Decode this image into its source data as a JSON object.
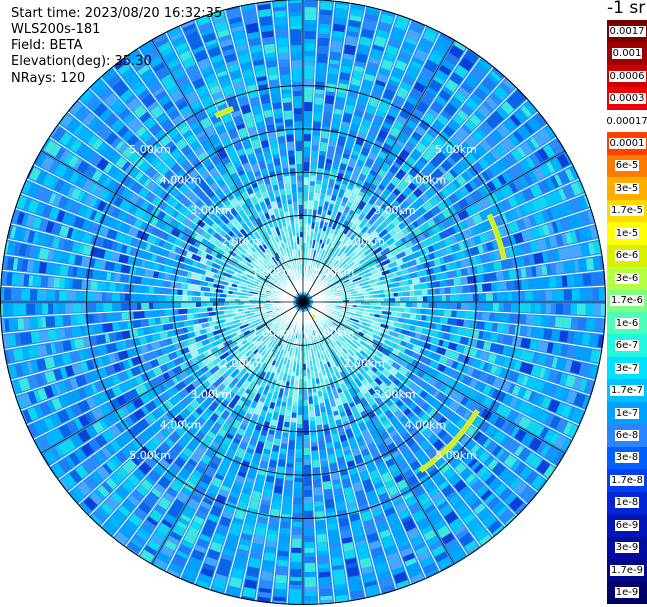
{
  "header": {
    "start_time": "Start time: 2023/08/20 16:32:35",
    "device": "WLS200s-181",
    "field": "Field: BETA",
    "elevation": "Elevation(deg): 35.30",
    "nrays": "NRays: 120"
  },
  "chart_data": {
    "type": "heatmap",
    "projection": "polar-ppi",
    "unit_label": "-1 sr",
    "range_rings_km": [
      1,
      2,
      3,
      4,
      5
    ],
    "ring_labels": [
      "1.00km",
      "2.00km",
      "3.00km",
      "4.00km",
      "5.00km"
    ],
    "max_range_km": 7.0,
    "nrays": 120,
    "colorbar": {
      "levels": [
        "0.0017",
        "0.001",
        "0.0006",
        "0.0003",
        "0.00017",
        "0.0001",
        "6e-5",
        "3e-5",
        "1.7e-5",
        "1e-5",
        "6e-6",
        "3e-6",
        "1.7e-6",
        "1e-6",
        "6e-7",
        "3e-7",
        "1.7e-7",
        "1e-7",
        "6e-8",
        "3e-8",
        "1.7e-8",
        "1e-8",
        "6e-9",
        "3e-9",
        "1.7e-9",
        "1e-9"
      ],
      "colors": [
        "#780000",
        "#a00000",
        "#cc0000",
        "#f00000",
        "#ffffff",
        "#ff4000",
        "#ff7a00",
        "#ffae00",
        "#ffd800",
        "#ffff00",
        "#d8f000",
        "#b4ff40",
        "#80ff80",
        "#4cffb8",
        "#20f8e0",
        "#00e0ff",
        "#00c0ff",
        "#00a0ff",
        "#2a86ff",
        "#0060ff",
        "#0040f0",
        "#0026d8",
        "#0016b8",
        "#000ca0",
        "#000688",
        "#000068"
      ]
    },
    "features": [
      {
        "type": "high-backscatter-arc",
        "az_deg": [
          335,
          340
        ],
        "range_km": [
          4.7,
          4.8
        ],
        "level": "1e-5"
      },
      {
        "type": "high-backscatter-arc",
        "az_deg": [
          65,
          78
        ],
        "range_km": [
          4.7,
          4.8
        ],
        "level": "1e-5"
      },
      {
        "type": "high-backscatter-arc",
        "az_deg": [
          122,
          145
        ],
        "range_km": [
          4.7,
          4.8
        ],
        "level": "1e-5"
      },
      {
        "type": "high-backscatter-spot",
        "az_deg": [
          140,
          146
        ],
        "range_km": [
          0.38,
          0.44
        ],
        "level": "6e-5"
      }
    ]
  }
}
